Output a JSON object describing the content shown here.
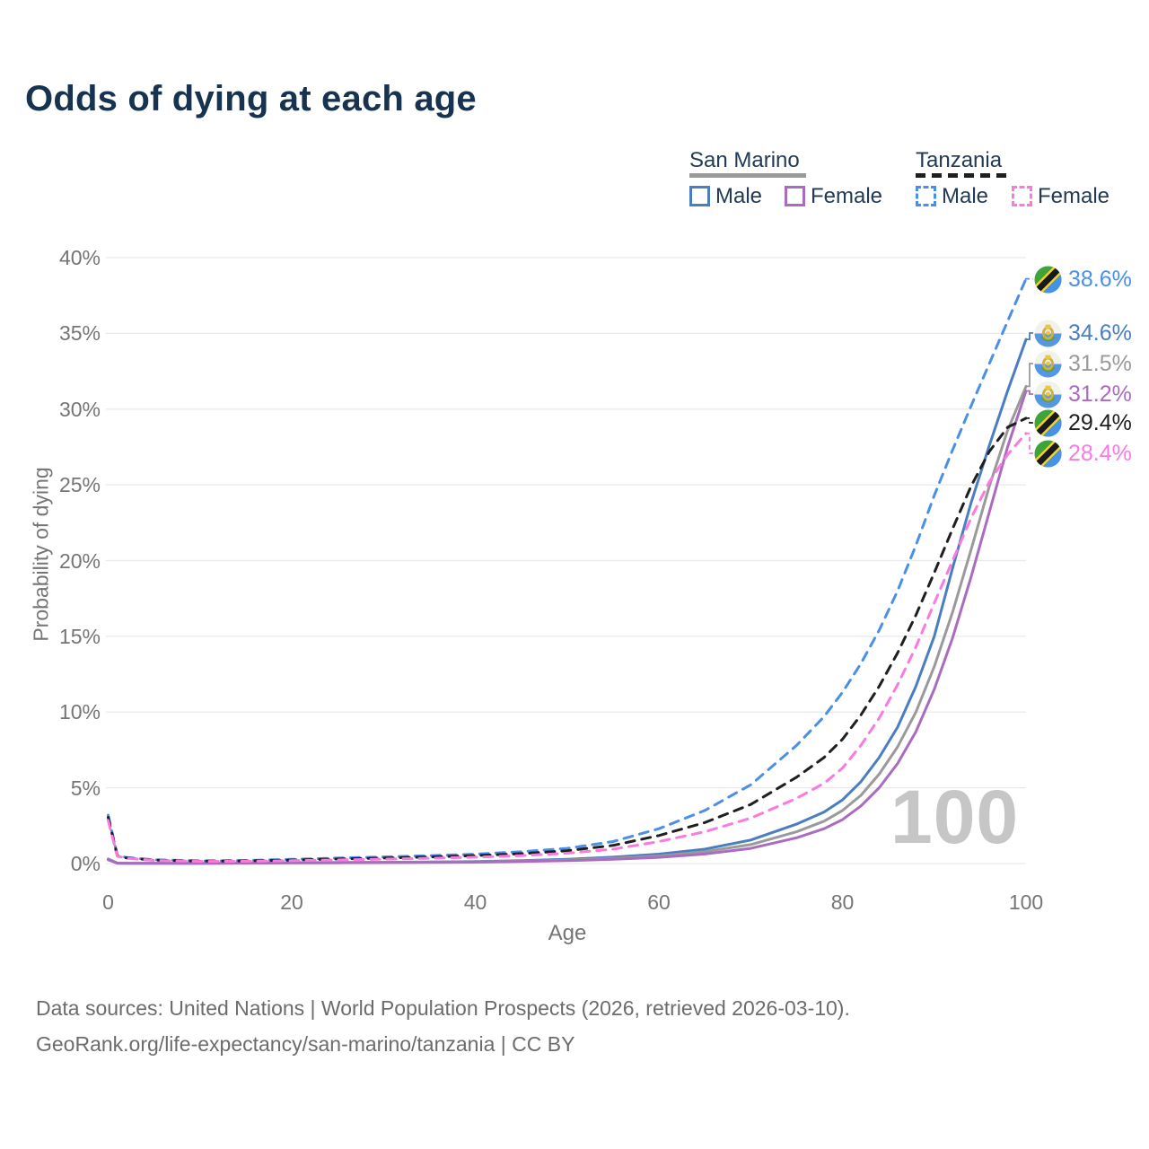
{
  "title": "Odds of dying at each age",
  "watermark": "100",
  "legend": {
    "san_marino": {
      "label": "San Marino",
      "male": "Male",
      "female": "Female"
    },
    "tanzania": {
      "label": "Tanzania",
      "male": "Male",
      "female": "Female"
    }
  },
  "footer": {
    "line1": "Data sources: United Nations | World Population Prospects (2026, retrieved 2026-03-10).",
    "line2": "GeoRank.org/life-expectancy/san-marino/tanzania | CC BY"
  },
  "colors": {
    "title": "#17334f",
    "axis_text": "#757575",
    "grid": "#e9e9e9",
    "watermark": "#c6c6c6",
    "san_marino_male": "#4a7ec0",
    "san_marino_both": "#9a9a9a",
    "san_marino_female": "#a96cbe",
    "tanzania_male": "#4a90e8",
    "tanzania_both": "#1f1f1f",
    "tanzania_female": "#fb7ae0"
  },
  "chart_data": {
    "type": "line",
    "title": "Odds of dying at each age",
    "xlabel": "Age",
    "ylabel": "Probability of dying",
    "xlim": [
      0,
      100
    ],
    "ylim": [
      0,
      40
    ],
    "x_ticks": [
      "0",
      "20",
      "40",
      "60",
      "80",
      "100"
    ],
    "x_tick_values": [
      0,
      20,
      40,
      60,
      80,
      100
    ],
    "y_ticks": [
      "0%",
      "5%",
      "10%",
      "15%",
      "20%",
      "25%",
      "30%",
      "35%",
      "40%"
    ],
    "y_tick_values": [
      0,
      5,
      10,
      15,
      20,
      25,
      30,
      35,
      40
    ],
    "grid": "horizontal",
    "legend_position": "top-right",
    "x": [
      0,
      1,
      2,
      5,
      10,
      15,
      20,
      25,
      30,
      35,
      40,
      45,
      50,
      55,
      60,
      65,
      70,
      75,
      78,
      80,
      82,
      84,
      86,
      88,
      90,
      92,
      94,
      96,
      98,
      100
    ],
    "series": [
      {
        "name": "San Marino Male",
        "country": "San Marino",
        "sex": "Male",
        "color": "#4a7ec0",
        "dashed": false,
        "flag": "sm",
        "end_label": "34.6%",
        "values": [
          0.3,
          0.03,
          0.02,
          0.02,
          0.02,
          0.04,
          0.06,
          0.07,
          0.08,
          0.1,
          0.13,
          0.19,
          0.28,
          0.42,
          0.62,
          0.95,
          1.55,
          2.6,
          3.4,
          4.2,
          5.4,
          7.0,
          9.0,
          11.7,
          15.0,
          19.5,
          23.8,
          27.6,
          31.2,
          34.6
        ]
      },
      {
        "name": "San Marino Both sexes",
        "country": "San Marino",
        "sex": "Both",
        "color": "#9a9a9a",
        "dashed": false,
        "flag": "sm",
        "end_label": "31.5%",
        "values": [
          0.28,
          0.025,
          0.02,
          0.02,
          0.02,
          0.03,
          0.05,
          0.06,
          0.07,
          0.09,
          0.11,
          0.16,
          0.23,
          0.34,
          0.5,
          0.78,
          1.25,
          2.1,
          2.8,
          3.5,
          4.5,
          5.9,
          7.7,
          10.0,
          13.0,
          16.6,
          20.7,
          24.9,
          28.6,
          31.5
        ]
      },
      {
        "name": "San Marino Female",
        "country": "San Marino",
        "sex": "Female",
        "color": "#a96cbe",
        "dashed": false,
        "flag": "sm",
        "end_label": "31.2%",
        "values": [
          0.25,
          0.02,
          0.015,
          0.015,
          0.015,
          0.025,
          0.04,
          0.05,
          0.06,
          0.07,
          0.09,
          0.13,
          0.19,
          0.28,
          0.41,
          0.63,
          1.0,
          1.7,
          2.3,
          2.9,
          3.8,
          5.0,
          6.6,
          8.7,
          11.5,
          14.9,
          18.9,
          23.2,
          27.5,
          31.2
        ]
      },
      {
        "name": "Tanzania Male",
        "country": "Tanzania",
        "sex": "Male",
        "color": "#4a90e8",
        "dashed": true,
        "flag": "tz",
        "end_label": "38.6%",
        "values": [
          3.2,
          0.55,
          0.4,
          0.25,
          0.18,
          0.2,
          0.28,
          0.36,
          0.44,
          0.52,
          0.62,
          0.78,
          1.0,
          1.45,
          2.3,
          3.5,
          5.2,
          7.8,
          9.7,
          11.3,
          13.2,
          15.4,
          18.0,
          21.0,
          24.3,
          27.3,
          30.2,
          33.0,
          35.8,
          38.6
        ]
      },
      {
        "name": "Tanzania Both sexes",
        "country": "Tanzania",
        "sex": "Both",
        "color": "#1f1f1f",
        "dashed": true,
        "flag": "tz",
        "end_label": "29.4%",
        "values": [
          3.05,
          0.5,
          0.37,
          0.23,
          0.16,
          0.17,
          0.23,
          0.3,
          0.36,
          0.43,
          0.52,
          0.65,
          0.85,
          1.2,
          1.85,
          2.7,
          3.9,
          5.7,
          7.0,
          8.2,
          9.8,
          11.7,
          13.9,
          16.4,
          19.2,
          22.1,
          24.9,
          27.2,
          28.8,
          29.4
        ]
      },
      {
        "name": "Tanzania Female",
        "country": "Tanzania",
        "sex": "Female",
        "color": "#fb7ae0",
        "dashed": true,
        "flag": "tz",
        "end_label": "28.4%",
        "values": [
          2.85,
          0.48,
          0.35,
          0.21,
          0.14,
          0.15,
          0.19,
          0.24,
          0.29,
          0.35,
          0.42,
          0.52,
          0.68,
          0.95,
          1.45,
          2.1,
          3.0,
          4.3,
          5.3,
          6.3,
          7.8,
          9.6,
          11.8,
          14.3,
          17.2,
          20.0,
          22.8,
          25.2,
          27.0,
          28.4
        ]
      }
    ],
    "end_labels": [
      "38.6%",
      "34.6%",
      "31.5%",
      "31.2%",
      "29.4%",
      "28.4%"
    ]
  }
}
